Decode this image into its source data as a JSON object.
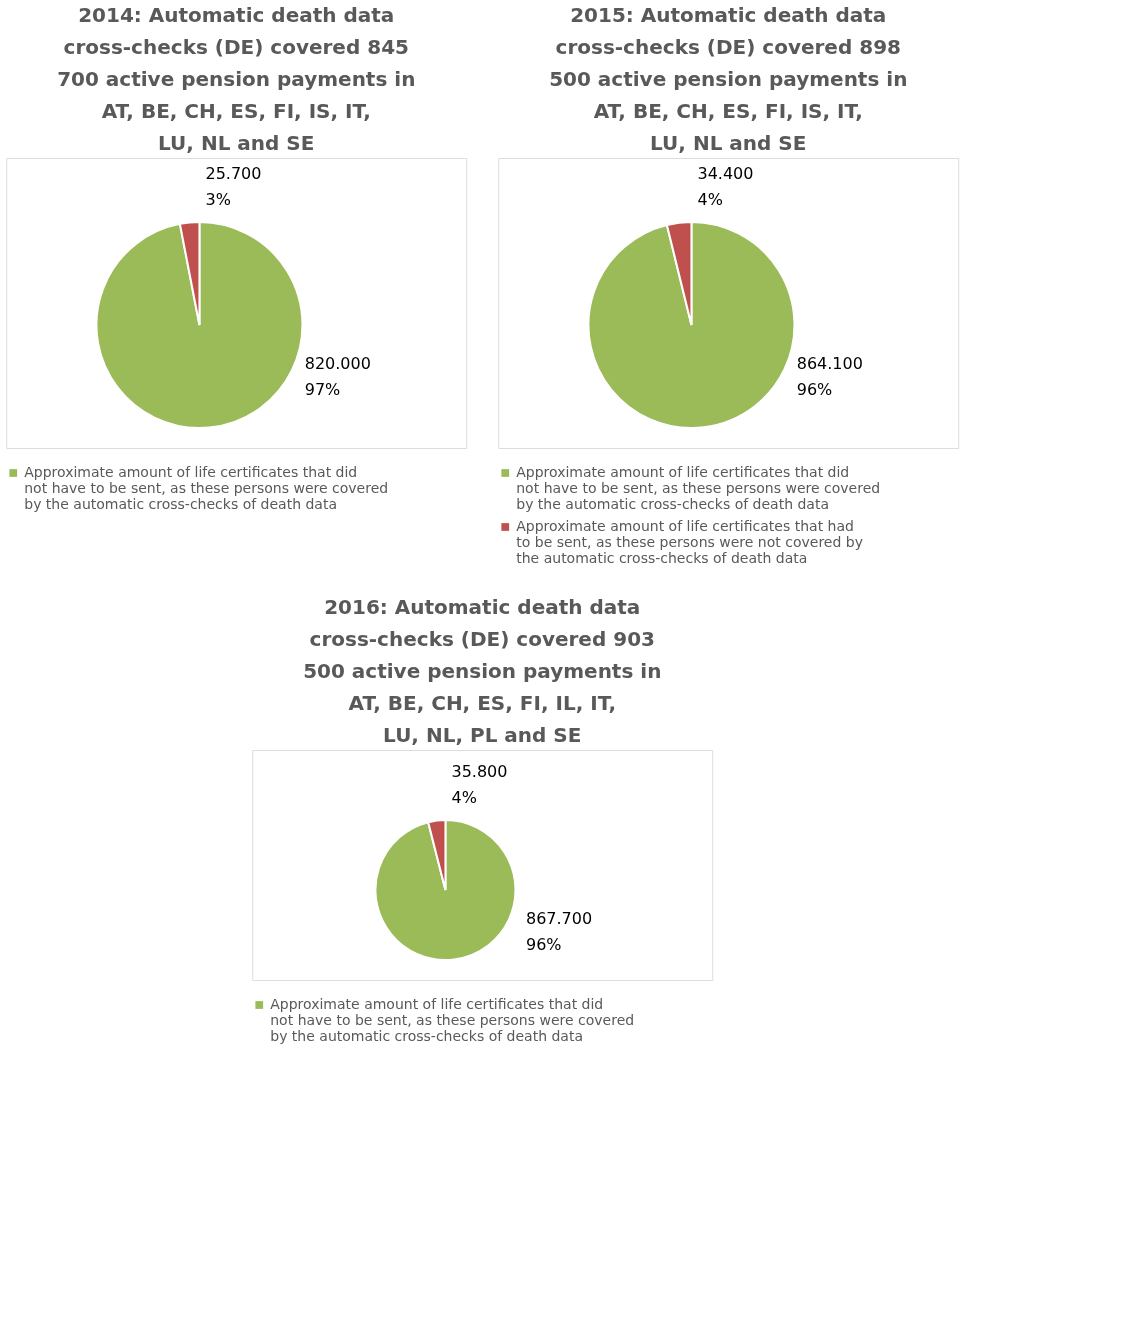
{
  "chart_data": [
    {
      "type": "pie",
      "title": "2014: Automatic death data cross-checks (DE) covered 845 700 active pension payments in AT, BE, CH, ES, FI, IS, IT, LU, NL and SE",
      "categories": [
        "Approximate amount of life certificates that did not have to be sent, as these persons were covered by the automatic cross-checks of death data",
        null
      ],
      "values": [
        820000,
        25700
      ],
      "colors": [
        "#9bbb59",
        "#c0504d"
      ],
      "value_labels": [
        "820.000\n97%",
        "25.700\n3%"
      ],
      "legend": "bottom"
    },
    {
      "type": "pie",
      "title": "2015: Automatic death data cross-checks (DE) covered 898 500 active pension payments in AT, BE, CH, ES, FI, IS, IT, LU, NL and SE",
      "categories": [
        "Approximate amount of life certificates that did not have to be sent, as these persons were covered by the automatic cross-checks of death data",
        "Approximate amount of life certificates that had to be sent, as these persons were not covered by the automatic cross-checks of death data"
      ],
      "values": [
        864100,
        34400
      ],
      "colors": [
        "#9bbb59",
        "#c0504d"
      ],
      "value_labels": [
        "864.100\n96%",
        "34.400\n4%"
      ],
      "legend": "bottom"
    },
    {
      "type": "pie",
      "title": "2016: Automatic death data cross-checks (DE) covered 903 500 active pension payments in AT, BE, CH, ES, FI, IL, IT, LU, NL, PL and SE",
      "categories": [
        "Approximate amount of life certificates that did not have to be sent, as these persons were covered by the automatic cross-checks of death data",
        null
      ],
      "values": [
        867700,
        35800
      ],
      "colors": [
        "#9bbb59",
        "#c0504d"
      ],
      "value_labels": [
        "867.700\n96%",
        "35.800\n4%"
      ],
      "legend": "bottom"
    }
  ]
}
